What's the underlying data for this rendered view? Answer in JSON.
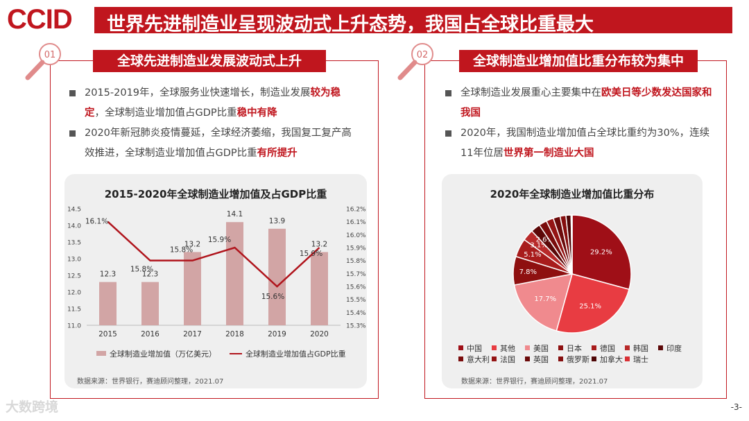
{
  "header": {
    "logo": "CCID",
    "title": "世界先进制造业呈现波动式上升态势，我国占全球比重最大"
  },
  "left": {
    "number": "01",
    "badge": "全球先进制造业发展波动式上升",
    "bullets": [
      {
        "p1": "2015-2019年，全球服务业快速增长，制造业发展",
        "h1": "较为稳定",
        "p2": "，全球制造业增加值占GDP比重",
        "h2": "稳中有降"
      },
      {
        "p1": "2020年新冠肺炎疫情蔓延，全球经济萎缩，我国复工复产高效推进，全球制造业增加值占GDP比重",
        "h1": "有所提升",
        "p2": "",
        "h2": ""
      }
    ],
    "source": "数据来源：世界银行，赛迪顾问整理，2021.07"
  },
  "right": {
    "number": "02",
    "badge": "全球制造业增加值比重分布较为集中",
    "bullets": [
      {
        "p1": "全球制造业发展重心主要集中在",
        "h1": "欧美日等少数发达国家和我国",
        "p2": "",
        "h2": ""
      },
      {
        "p1": "2020年，我国制造业增加值占全球比重约为30%，连续11年位居",
        "h1": "世界第一制造业大国",
        "p2": "",
        "h2": ""
      }
    ],
    "source": "数据来源：世界银行，赛迪顾问整理，2021.07"
  },
  "chart_data": [
    {
      "type": "bar+line",
      "title": "2015-2020年全球制造业增加值及占GDP比重",
      "categories": [
        "2015",
        "2016",
        "2017",
        "2018",
        "2019",
        "2020"
      ],
      "series": [
        {
          "name": "全球制造业增加值（万亿美元）",
          "type": "bar",
          "axis": "left",
          "values": [
            12.3,
            12.3,
            13.2,
            14.1,
            13.9,
            13.2
          ],
          "labels": [
            "12.3",
            "12.3",
            "13.2",
            "14.1",
            "13.9",
            "13.2"
          ]
        },
        {
          "name": "全球制造业增加值占GDP比重",
          "type": "line",
          "axis": "right",
          "values": [
            16.1,
            15.8,
            15.8,
            15.9,
            15.6,
            15.9
          ],
          "labels": [
            "16.1%",
            "15.8%",
            "15.8%",
            "15.9%",
            "15.6%",
            "15.9%"
          ]
        }
      ],
      "ylim_left": [
        11.0,
        14.5
      ],
      "yticks_left": [
        "11.0",
        "11.5",
        "12.0",
        "12.5",
        "13.0",
        "13.5",
        "14.0",
        "14.5"
      ],
      "ylim_right": [
        15.3,
        16.2
      ],
      "yticks_right": [
        "15.3%",
        "15.4%",
        "15.5%",
        "15.6%",
        "15.7%",
        "15.8%",
        "15.9%",
        "16.0%",
        "16.1%",
        "16.2%"
      ],
      "legend": "bottom",
      "colors": {
        "bar": "#d2a5a5",
        "line": "#b0141c"
      }
    },
    {
      "type": "pie",
      "title": "2020年全球制造业增加值比重分布",
      "slices": [
        {
          "name": "中国",
          "value": 29.2,
          "label": "29.2%",
          "color": "#9f0f17"
        },
        {
          "name": "其他",
          "value": 25.1,
          "label": "25.1%",
          "color": "#e83c42"
        },
        {
          "name": "美国",
          "value": 17.7,
          "label": "17.7%",
          "color": "#f08a8e"
        },
        {
          "name": "日本",
          "value": 7.8,
          "label": "7.8%",
          "color": "#8e1010"
        },
        {
          "name": "德国",
          "value": 5.1,
          "label": "5.1%",
          "color": "#a81c1c"
        },
        {
          "name": "韩国",
          "value": 3.1,
          "label": "3.1%",
          "color": "#b82a2a"
        },
        {
          "name": "印度",
          "value": 2.6,
          "label": "2.6%",
          "color": "#5c0808"
        },
        {
          "name": "意大利",
          "value": 2.2,
          "label": "",
          "color": "#7a0c0c"
        },
        {
          "name": "法国",
          "value": 2.0,
          "label": "",
          "color": "#941414"
        },
        {
          "name": "英国",
          "value": 1.9,
          "label": "",
          "color": "#6b0a0a"
        },
        {
          "name": "俄罗斯",
          "value": 1.6,
          "label": "",
          "color": "#850e0e"
        },
        {
          "name": "加拿大",
          "value": 1.4,
          "label": "",
          "color": "#4e0606"
        },
        {
          "name": "瑞士",
          "value": 0.3,
          "label": "",
          "color": "#d93035"
        }
      ],
      "legend": "bottom"
    }
  ],
  "footer": {
    "watermark": "大数跨境",
    "page": "-3-"
  }
}
